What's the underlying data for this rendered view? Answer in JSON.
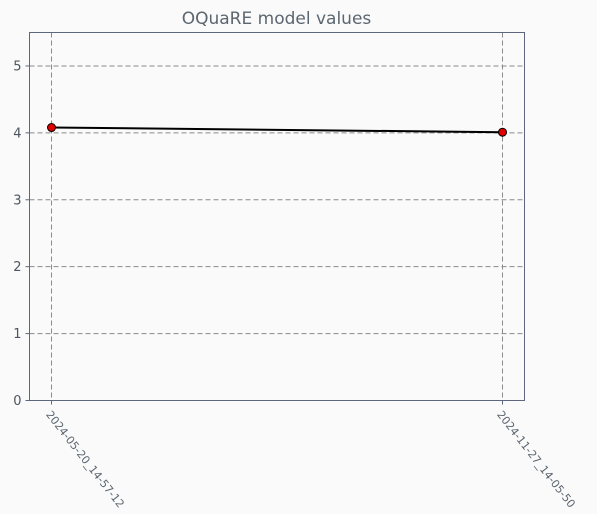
{
  "chart_data": {
    "type": "line",
    "title": "OQuaRE model values",
    "xlabel": "",
    "ylabel": "",
    "categories": [
      "2024-05-20_14-57-12",
      "2024-11-27_14-05-50"
    ],
    "series": [
      {
        "values": [
          4.08,
          4.01
        ],
        "line_color": "#000000",
        "marker_fill": "#e00000",
        "marker_edge": "#000000"
      }
    ],
    "ylim": [
      0,
      5.5
    ],
    "yticks": [
      "0",
      "1",
      "2",
      "3",
      "4",
      "5"
    ],
    "grid": true
  }
}
